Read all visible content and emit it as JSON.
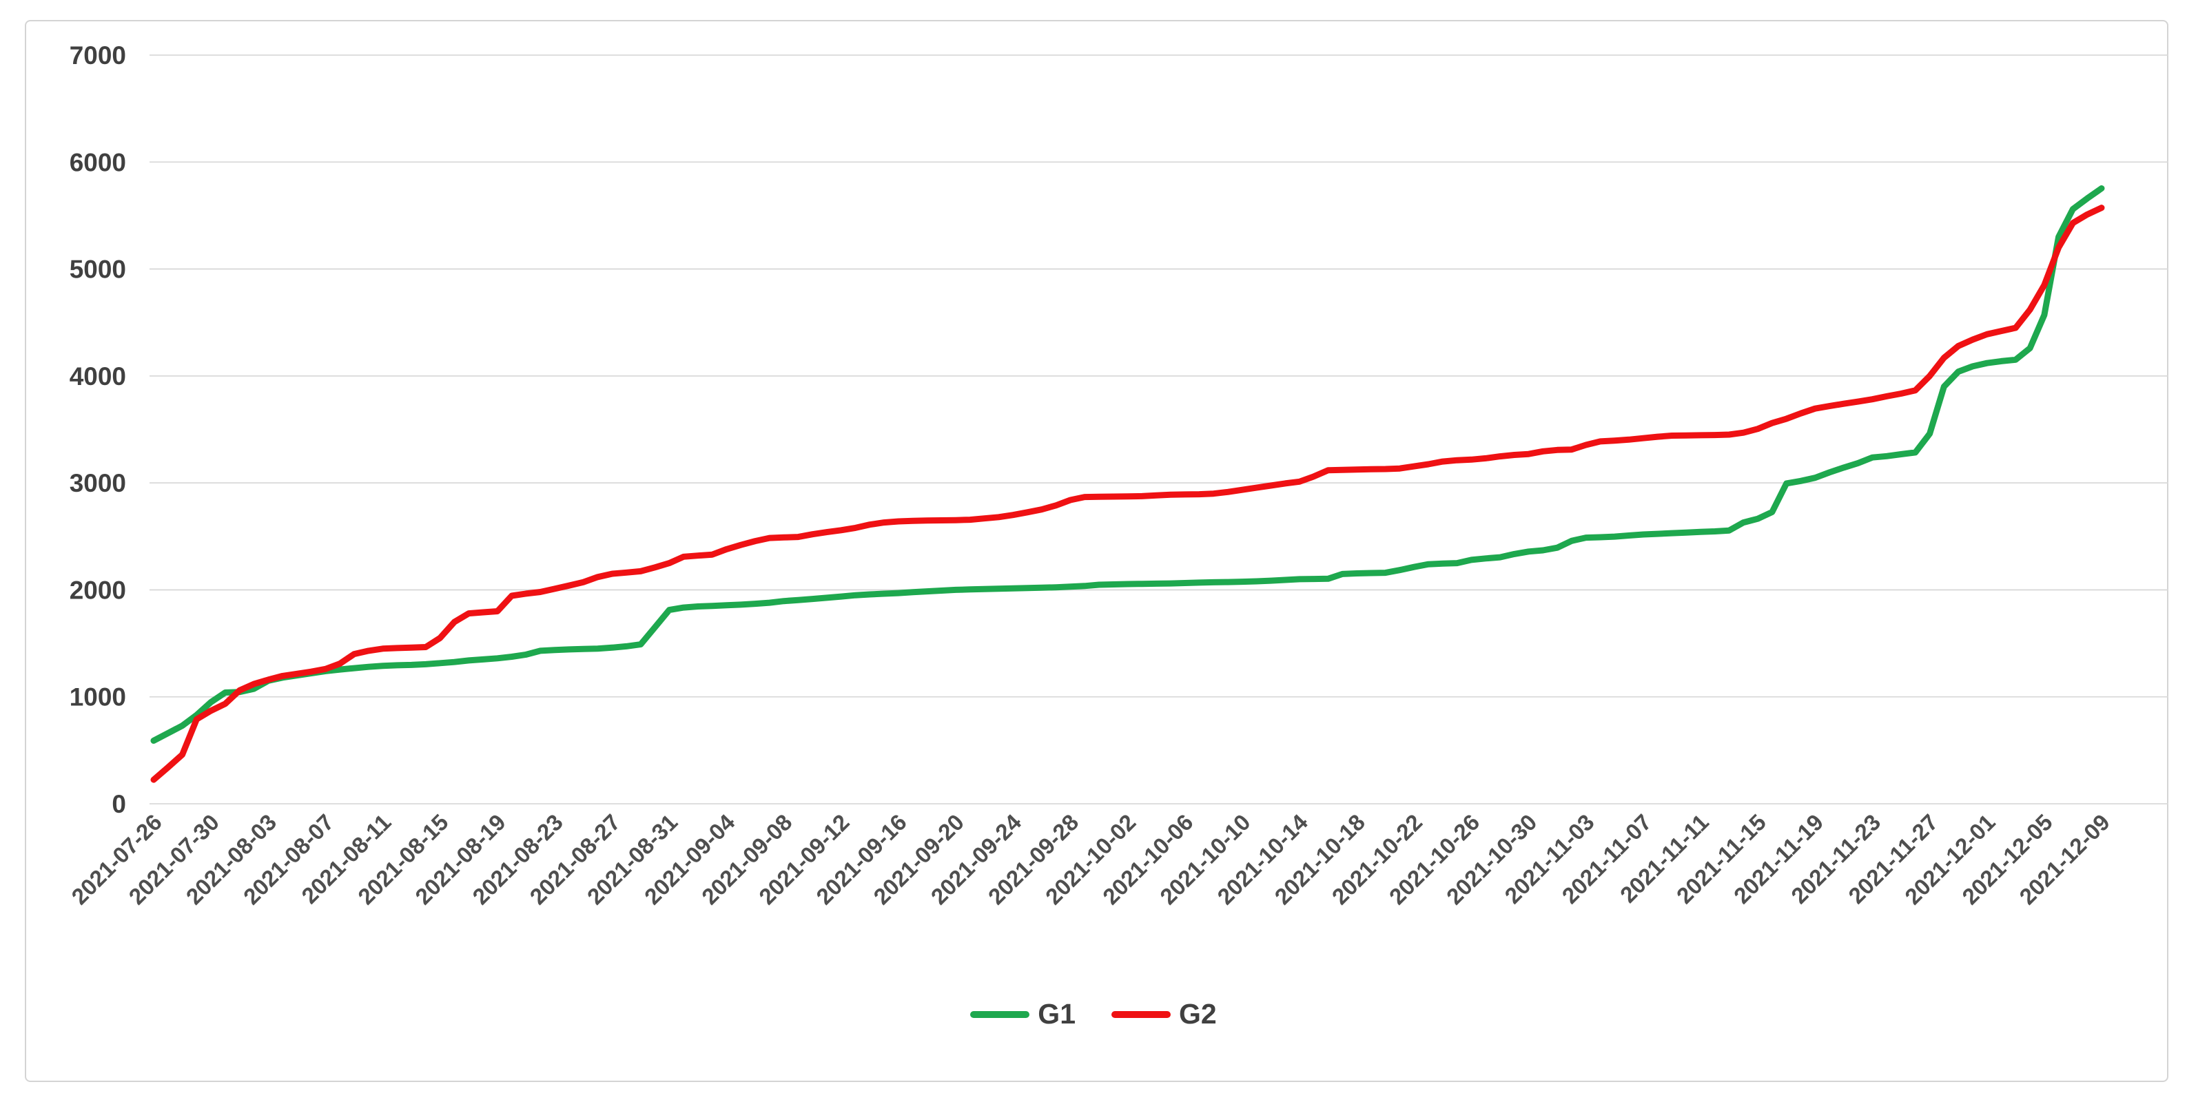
{
  "chart_data": {
    "type": "line",
    "title": "",
    "xlabel": "",
    "ylabel": "",
    "x_start": "2021-07-26",
    "x_end": "2021-12-09",
    "x_frequency": "daily",
    "x_tick_labels": [
      "2021-07-26",
      "2021-07-30",
      "2021-08-03",
      "2021-08-07",
      "2021-08-11",
      "2021-08-15",
      "2021-08-19",
      "2021-08-23",
      "2021-08-27",
      "2021-08-31",
      "2021-09-04",
      "2021-09-08",
      "2021-09-12",
      "2021-09-16",
      "2021-09-20",
      "2021-09-24",
      "2021-09-28",
      "2021-10-02",
      "2021-10-06",
      "2021-10-10",
      "2021-10-14",
      "2021-10-18",
      "2021-10-22",
      "2021-10-26",
      "2021-10-30",
      "2021-11-03",
      "2021-11-07",
      "2021-11-11",
      "2021-11-15",
      "2021-11-19",
      "2021-11-23",
      "2021-11-27",
      "2021-12-01",
      "2021-12-05",
      "2021-12-09"
    ],
    "x_ticks_every_n_days": 4,
    "ylim": [
      0,
      7000
    ],
    "y_tick_step": 1000,
    "y_tick_labels": [
      "0",
      "1000",
      "2000",
      "3000",
      "4000",
      "5000",
      "6000",
      "7000"
    ],
    "grid": "horizontal",
    "gridline_color": "#d9d9d9",
    "legend_position": "bottom-center",
    "axis_label_color": "#404040",
    "series": [
      {
        "name": "G1",
        "color": "#1ea84e",
        "values": [
          590,
          660,
          730,
          830,
          950,
          1040,
          1045,
          1075,
          1150,
          1180,
          1200,
          1220,
          1240,
          1255,
          1268,
          1280,
          1290,
          1295,
          1298,
          1305,
          1315,
          1325,
          1340,
          1350,
          1360,
          1375,
          1395,
          1430,
          1438,
          1443,
          1447,
          1450,
          1460,
          1472,
          1490,
          1650,
          1812,
          1835,
          1845,
          1850,
          1856,
          1862,
          1870,
          1880,
          1895,
          1905,
          1915,
          1926,
          1938,
          1950,
          1958,
          1964,
          1970,
          1978,
          1986,
          1993,
          2000,
          2004,
          2008,
          2011,
          2014,
          2017,
          2020,
          2024,
          2030,
          2036,
          2048,
          2051,
          2054,
          2056,
          2058,
          2060,
          2064,
          2068,
          2071,
          2073,
          2076,
          2080,
          2086,
          2093,
          2100,
          2102,
          2104,
          2148,
          2154,
          2157,
          2160,
          2185,
          2214,
          2240,
          2246,
          2250,
          2280,
          2294,
          2305,
          2335,
          2358,
          2370,
          2394,
          2458,
          2488,
          2492,
          2498,
          2508,
          2518,
          2524,
          2530,
          2536,
          2542,
          2547,
          2555,
          2630,
          2665,
          2728,
          2995,
          3018,
          3048,
          3098,
          3143,
          3185,
          3238,
          3250,
          3268,
          3285,
          3460,
          3900,
          4040,
          4090,
          4120,
          4138,
          4152,
          4260,
          4570,
          5300,
          5560,
          5660,
          5754
        ]
      },
      {
        "name": "G2",
        "color": "#ef1113",
        "values": [
          225,
          340,
          460,
          790,
          870,
          935,
          1060,
          1120,
          1160,
          1195,
          1215,
          1235,
          1260,
          1310,
          1400,
          1430,
          1450,
          1456,
          1460,
          1465,
          1550,
          1700,
          1780,
          1790,
          1800,
          1945,
          1965,
          1980,
          2010,
          2040,
          2072,
          2120,
          2150,
          2162,
          2174,
          2210,
          2250,
          2310,
          2320,
          2330,
          2380,
          2420,
          2456,
          2485,
          2490,
          2495,
          2520,
          2540,
          2558,
          2580,
          2610,
          2630,
          2640,
          2645,
          2648,
          2650,
          2652,
          2656,
          2668,
          2680,
          2700,
          2725,
          2752,
          2790,
          2840,
          2868,
          2870,
          2872,
          2874,
          2876,
          2884,
          2890,
          2892,
          2894,
          2900,
          2915,
          2935,
          2955,
          2975,
          2995,
          3012,
          3060,
          3118,
          3122,
          3125,
          3128,
          3130,
          3135,
          3155,
          3175,
          3200,
          3212,
          3218,
          3230,
          3248,
          3262,
          3270,
          3295,
          3308,
          3312,
          3355,
          3388,
          3395,
          3405,
          3418,
          3432,
          3442,
          3444,
          3446,
          3448,
          3452,
          3470,
          3505,
          3560,
          3600,
          3650,
          3695,
          3718,
          3740,
          3760,
          3782,
          3810,
          3835,
          3866,
          4000,
          4170,
          4280,
          4340,
          4390,
          4420,
          4450,
          4620,
          4850,
          5200,
          5430,
          5510,
          5572
        ]
      }
    ]
  },
  "legend": {
    "items": [
      {
        "label": "G1",
        "color": "#1ea84e"
      },
      {
        "label": "G2",
        "color": "#ef1113"
      }
    ]
  }
}
